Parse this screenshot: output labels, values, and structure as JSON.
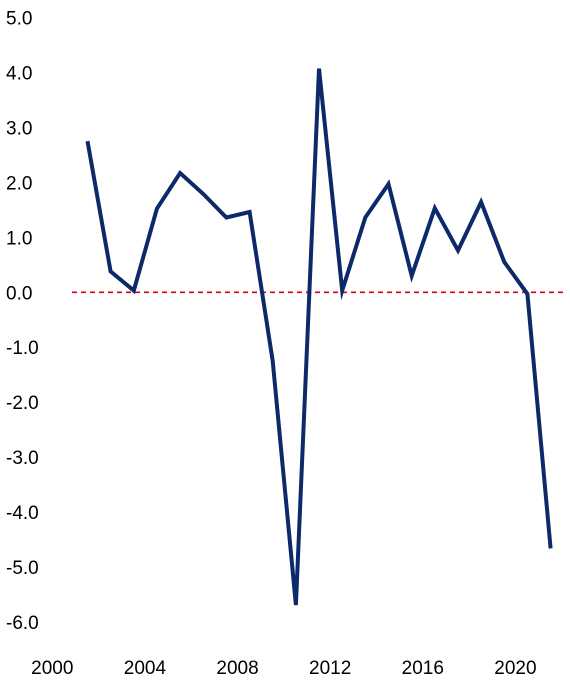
{
  "chart_data": {
    "type": "line",
    "title": "",
    "xlabel": "",
    "ylabel": "",
    "x_ticks": [
      "2000",
      "2004",
      "2008",
      "2012",
      "2016",
      "2020"
    ],
    "y_ticks": [
      "5.0",
      "4.0",
      "3.0",
      "2.0",
      "1.0",
      "0.0",
      "-1.0",
      "-2.0",
      "-3.0",
      "-4.0",
      "-5.0",
      "-6.0"
    ],
    "xlim": [
      2000,
      2021
    ],
    "ylim": [
      -6.0,
      5.0
    ],
    "grid": false,
    "series": [
      {
        "name": "",
        "color": "#0c2a6a",
        "x": [
          2001,
          2002,
          2003,
          2004,
          2005,
          2006,
          2007,
          2008,
          2009,
          2010,
          2011,
          2012,
          2013,
          2014,
          2015,
          2016,
          2017,
          2018,
          2019,
          2020,
          2021
        ],
        "y": [
          2.75,
          0.38,
          0.03,
          1.52,
          2.17,
          1.79,
          1.36,
          1.46,
          -1.25,
          -5.69,
          4.07,
          0.03,
          1.36,
          1.97,
          0.3,
          1.53,
          0.76,
          1.64,
          0.55,
          -0.03,
          -4.66
        ]
      }
    ],
    "reference_line": {
      "y": 0.0,
      "color": "#d0021b",
      "style": "dashed"
    }
  }
}
